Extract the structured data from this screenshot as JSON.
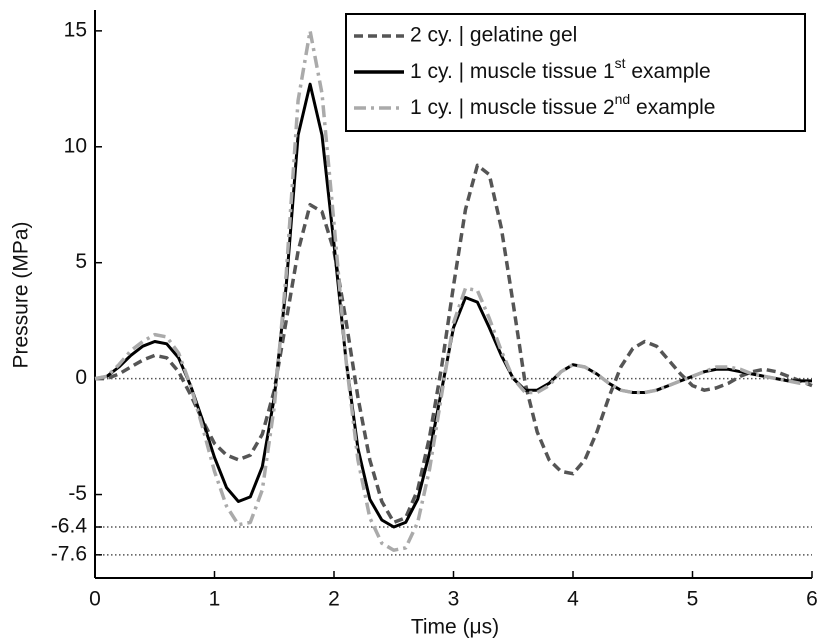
{
  "chart_data": {
    "type": "line",
    "x_label": "Time (μs)",
    "y_label": "Pressure (MPa)",
    "x": [
      0,
      0.1,
      0.2,
      0.3,
      0.4,
      0.5,
      0.6,
      0.7,
      0.8,
      0.9,
      1.0,
      1.1,
      1.2,
      1.3,
      1.4,
      1.5,
      1.6,
      1.7,
      1.8,
      1.9,
      2.0,
      2.1,
      2.2,
      2.3,
      2.4,
      2.5,
      2.6,
      2.7,
      2.8,
      2.9,
      3.0,
      3.1,
      3.2,
      3.3,
      3.4,
      3.5,
      3.6,
      3.7,
      3.8,
      3.9,
      4.0,
      4.1,
      4.2,
      4.3,
      4.4,
      4.5,
      4.6,
      4.7,
      4.8,
      4.9,
      5.0,
      5.1,
      5.2,
      5.3,
      5.4,
      5.5,
      5.6,
      5.7,
      5.8,
      5.9,
      6.0
    ],
    "series": [
      {
        "name": "2 cy. | gelatine gel",
        "color": "#555555",
        "style": "dashed",
        "values": [
          0,
          0,
          0.2,
          0.5,
          0.8,
          1.0,
          0.9,
          0.3,
          -0.7,
          -1.8,
          -2.8,
          -3.3,
          -3.5,
          -3.3,
          -2.4,
          -0.5,
          2.5,
          5.5,
          7.5,
          7.2,
          5.5,
          2.5,
          -0.8,
          -3.5,
          -5.3,
          -6.2,
          -6.0,
          -4.8,
          -2.5,
          0.5,
          4.0,
          7.3,
          9.2,
          8.8,
          6.5,
          3.2,
          -0.2,
          -2.3,
          -3.5,
          -4.0,
          -4.1,
          -3.5,
          -2.3,
          -0.8,
          0.5,
          1.3,
          1.6,
          1.4,
          0.8,
          0.2,
          -0.3,
          -0.5,
          -0.4,
          -0.2,
          0.1,
          0.3,
          0.4,
          0.3,
          0.1,
          -0.1,
          -0.3
        ]
      },
      {
        "name": "1 cy. | muscle tissue 1st example",
        "color": "#000000",
        "style": "solid",
        "values": [
          0,
          0.1,
          0.5,
          1.0,
          1.4,
          1.6,
          1.5,
          0.9,
          -0.3,
          -1.8,
          -3.4,
          -4.7,
          -5.3,
          -5.1,
          -3.8,
          -0.8,
          4.0,
          10.5,
          12.7,
          10.5,
          5.8,
          0.8,
          -3.0,
          -5.2,
          -6.1,
          -6.4,
          -6.2,
          -5.2,
          -3.2,
          -0.5,
          2.2,
          3.5,
          3.3,
          2.2,
          1.0,
          0.0,
          -0.5,
          -0.5,
          -0.2,
          0.3,
          0.6,
          0.5,
          0.2,
          -0.2,
          -0.5,
          -0.6,
          -0.6,
          -0.5,
          -0.3,
          -0.1,
          0.1,
          0.3,
          0.4,
          0.4,
          0.3,
          0.2,
          0.1,
          0,
          -0.1,
          -0.1,
          -0.1
        ]
      },
      {
        "name": "1 cy. | muscle tissue 2nd example",
        "color": "#aaaaaa",
        "style": "dashdot",
        "values": [
          0,
          0.1,
          0.6,
          1.2,
          1.6,
          1.9,
          1.8,
          1.1,
          -0.3,
          -2.1,
          -4.0,
          -5.5,
          -6.3,
          -6.2,
          -4.8,
          -1.2,
          4.5,
          12.0,
          15.0,
          12.3,
          6.7,
          0.8,
          -3.5,
          -6.0,
          -7.1,
          -7.4,
          -7.3,
          -6.2,
          -3.9,
          -0.7,
          2.4,
          3.9,
          3.8,
          2.6,
          1.2,
          0.0,
          -0.6,
          -0.6,
          -0.3,
          0.3,
          0.6,
          0.5,
          0.2,
          -0.2,
          -0.5,
          -0.6,
          -0.6,
          -0.5,
          -0.3,
          -0.1,
          0.1,
          0.3,
          0.5,
          0.5,
          0.4,
          0.2,
          0.1,
          0,
          -0.1,
          -0.2,
          -0.2
        ]
      }
    ],
    "xlim": [
      0,
      6
    ],
    "xticks": [
      0,
      1,
      2,
      3,
      4,
      5,
      6
    ],
    "ylim": [
      -8.6,
      15.9
    ],
    "yticks": [
      -7.6,
      -6.4,
      -5,
      0,
      5,
      10,
      15
    ],
    "reference_lines": [
      0,
      -6.4,
      -7.6
    ],
    "legend": "upper right"
  }
}
